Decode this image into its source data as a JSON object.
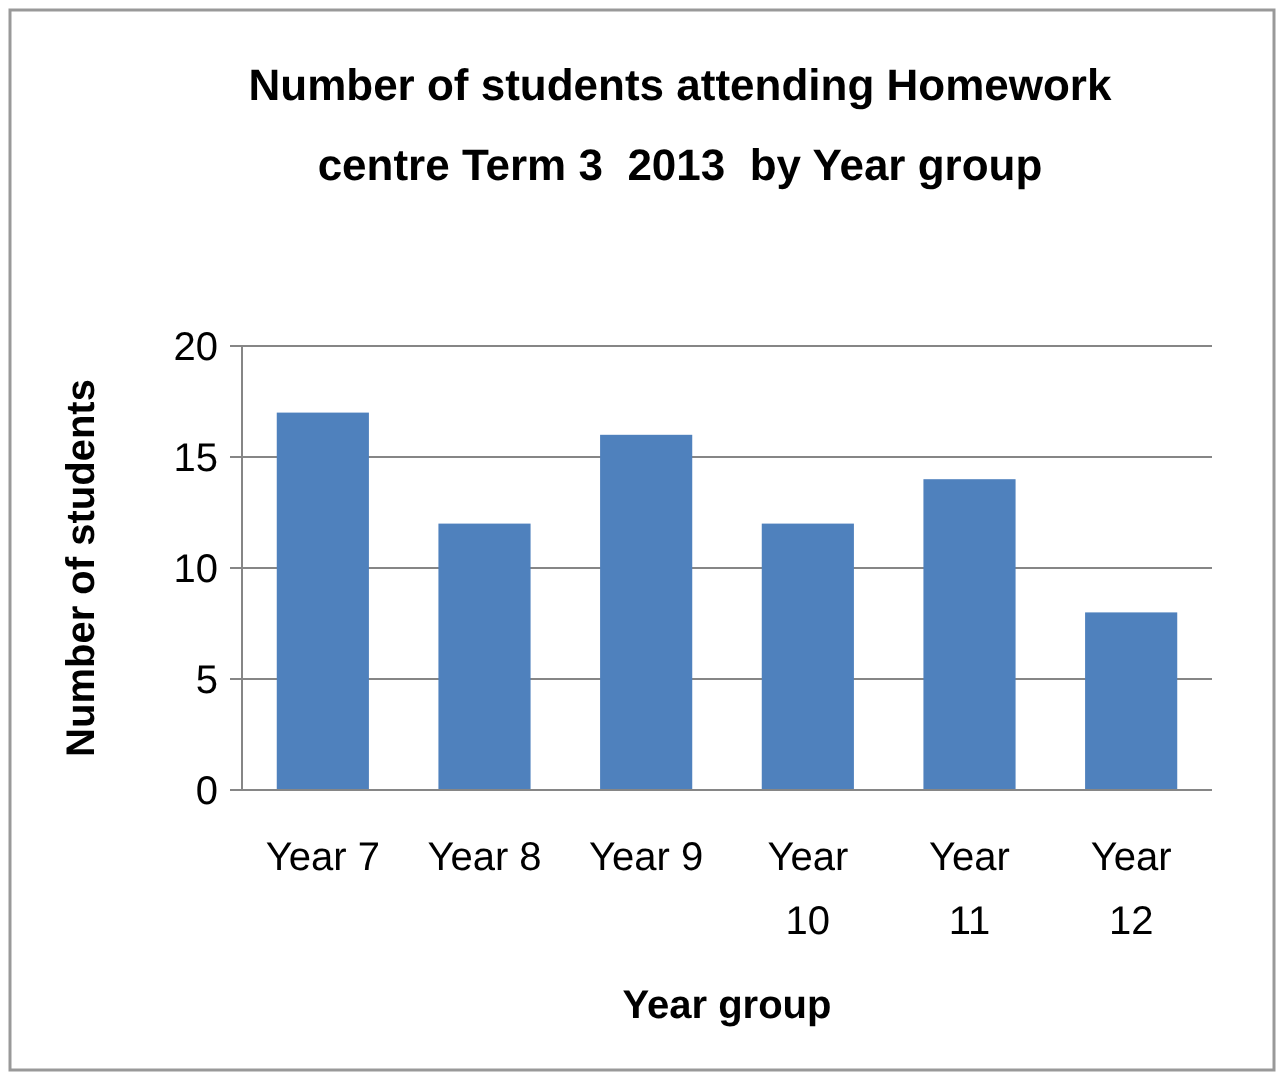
{
  "chart_data": {
    "type": "bar",
    "title": "Number of students attending Homework centre Term 3  2013  by Year group",
    "xlabel": "Year group",
    "ylabel": "Number of students",
    "categories": [
      "Year 7",
      "Year 8",
      "Year 9",
      "Year 10",
      "Year 11",
      "Year 12"
    ],
    "values": [
      17,
      12,
      16,
      12,
      14,
      8
    ],
    "color": "#4f81bd",
    "ylim": [
      0,
      20
    ],
    "yticks": [
      0,
      5,
      10,
      15,
      20
    ],
    "grid": "y"
  }
}
